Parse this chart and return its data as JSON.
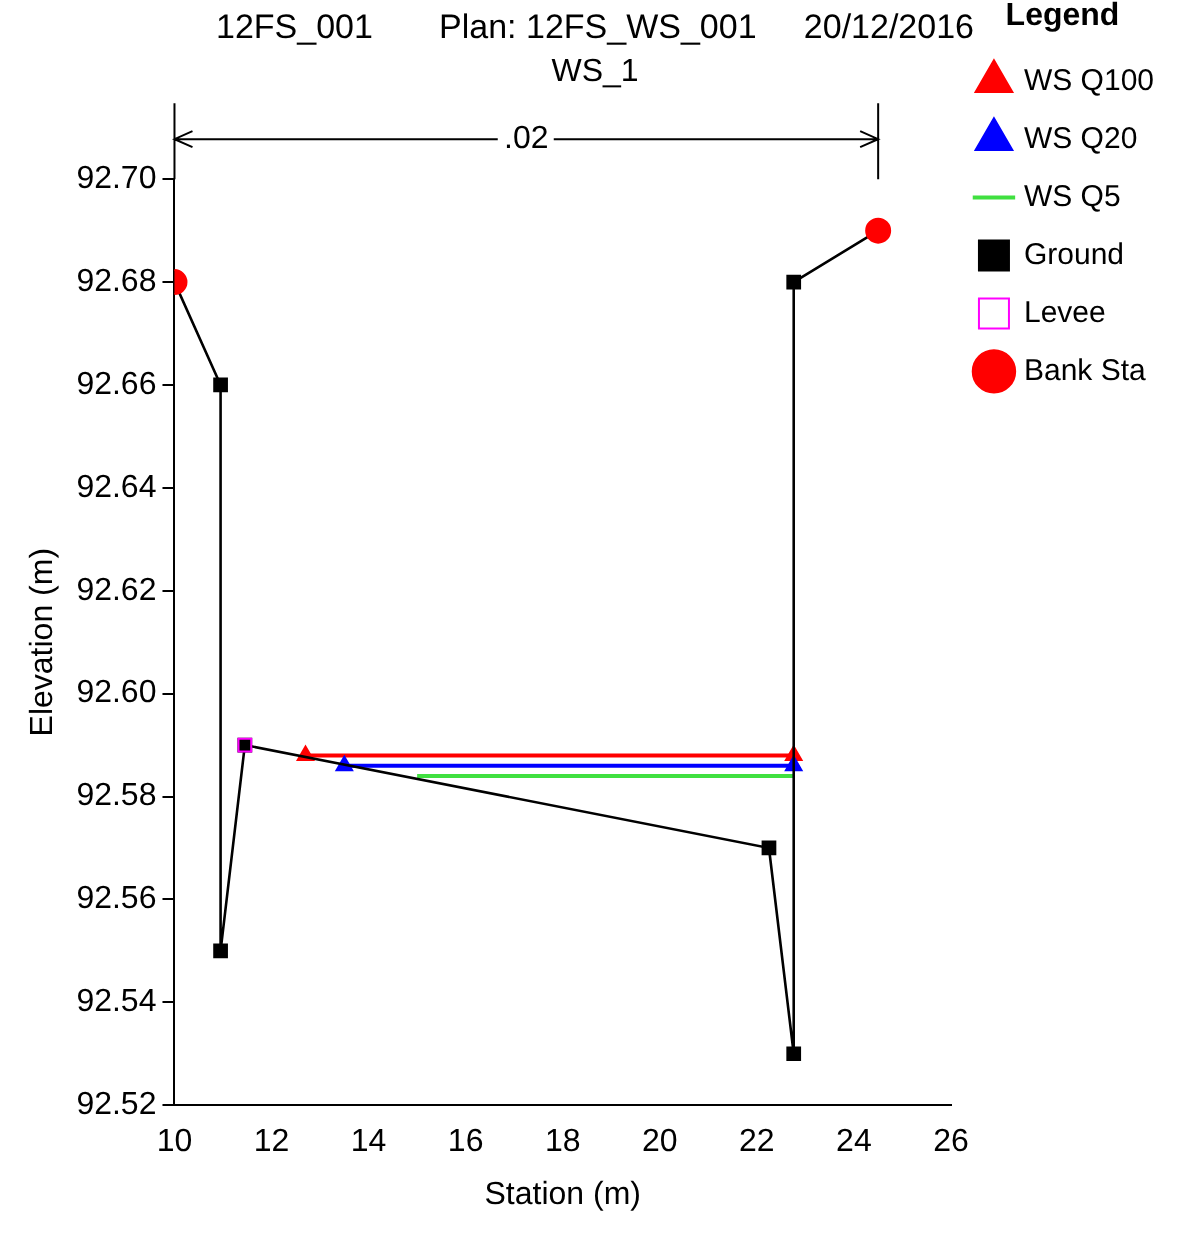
{
  "chart_data": {
    "type": "line",
    "title": "12FS_001       Plan: 12FS_WS_001     20/12/2016",
    "subtitle": "WS_1",
    "xlabel": "Station (m)",
    "ylabel": "Elevation (m)",
    "legend_title": "Legend",
    "legend": "right",
    "grid": false,
    "xlim": [
      10,
      26
    ],
    "xticks": [
      10,
      12,
      14,
      16,
      18,
      20,
      22,
      24,
      26
    ],
    "ylim": [
      92.52,
      92.7
    ],
    "yticks": [
      92.52,
      92.54,
      92.56,
      92.58,
      {
        "value": 92.6,
        "label": "92.60"
      },
      92.62,
      92.64,
      92.66,
      92.68,
      {
        "value": 92.7,
        "label": "92.70"
      }
    ],
    "annotations": [
      ".02"
    ],
    "series": [
      {
        "name": "WS Q100",
        "color": "#ff0000",
        "marker": "triangle",
        "x": [
          12.7,
          22.76
        ],
        "values": [
          92.588,
          92.588
        ]
      },
      {
        "name": "WS Q20",
        "color": "#0000ff",
        "marker": "triangle",
        "x": [
          13.5,
          22.76
        ],
        "values": [
          92.586,
          92.586
        ]
      },
      {
        "name": "WS Q5",
        "color": "#40e040",
        "marker": "none",
        "x": [
          15.0,
          22.76
        ],
        "values": [
          92.584,
          92.584
        ]
      },
      {
        "name": "Ground",
        "color": "#000000",
        "marker": "square",
        "x": [
          10.0,
          10.95,
          10.95,
          11.45,
          22.25,
          22.76,
          22.76,
          24.5
        ],
        "values": [
          92.68,
          92.66,
          92.55,
          92.59,
          92.57,
          92.53,
          92.68,
          92.69
        ]
      },
      {
        "name": "Levee",
        "color": "#ff00ff",
        "type": "scatter",
        "marker": "square",
        "x": [
          11.45
        ],
        "values": [
          92.59
        ]
      },
      {
        "name": "Bank Sta",
        "color": "#ff0000",
        "type": "scatter",
        "marker": "circle",
        "x": [
          10.0,
          24.5
        ],
        "values": [
          92.68,
          92.69
        ]
      }
    ]
  }
}
